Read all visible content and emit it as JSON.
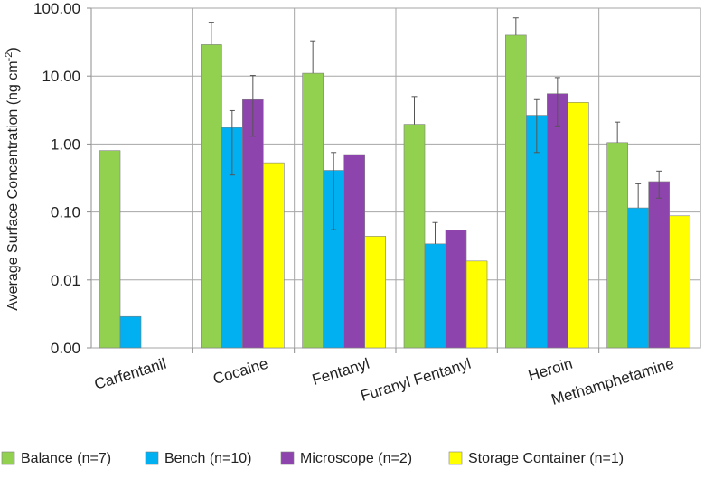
{
  "chart_data": {
    "type": "bar",
    "ylabel": "Average Surface Concentration (ng cm",
    "ylabel_sup": "-2",
    "ylabel_close": ")",
    "y_scale": "log",
    "ylim": [
      0.001,
      100
    ],
    "y_ticks": [
      0.001,
      0.01,
      0.1,
      1,
      10,
      100
    ],
    "y_tick_labels": [
      "0.00",
      "0.01",
      "0.10",
      "1.00",
      "10.00",
      "100.00"
    ],
    "grid": true,
    "legend_position": "bottom",
    "categories": [
      "Carfentanil",
      "Cocaine",
      "Fentanyl",
      "Furanyl Fentanyl",
      "Heroin",
      "Methamphetamine"
    ],
    "series": [
      {
        "name": "Balance (n=7)",
        "color": "#92d050",
        "values": [
          0.8,
          29,
          11,
          1.95,
          40,
          1.05
        ],
        "error_upper": [
          null,
          62,
          33,
          5,
          72,
          2.1
        ]
      },
      {
        "name": "Bench (n=10)",
        "color": "#00b0f0",
        "values": [
          0.0029,
          1.75,
          0.41,
          0.034,
          2.65,
          0.115
        ],
        "error_upper": [
          null,
          3.1,
          0.75,
          0.07,
          4.5,
          0.26
        ],
        "error_lower": [
          null,
          0.35,
          0.055,
          null,
          0.75,
          null
        ]
      },
      {
        "name": "Microscope (n=2)",
        "color": "#8e44ad",
        "values": [
          null,
          4.5,
          0.7,
          0.054,
          5.5,
          0.28
        ],
        "error_upper": [
          null,
          10.2,
          null,
          null,
          9.5,
          0.4
        ],
        "error_lower": [
          null,
          1.3,
          null,
          null,
          1.85,
          0.16
        ]
      },
      {
        "name": "Storage Container (n=1)",
        "color": "#ffff00",
        "values": [
          null,
          0.53,
          0.044,
          0.019,
          4.1,
          0.088
        ]
      }
    ]
  }
}
